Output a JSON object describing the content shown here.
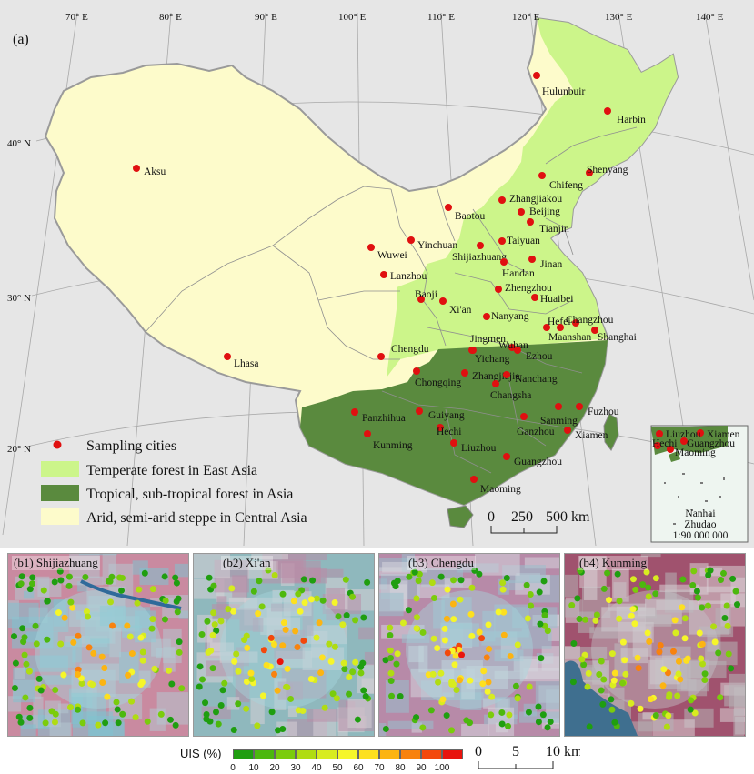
{
  "panel_a_label": "(a)",
  "longitude_labels": [
    "70° E",
    "80° E",
    "90° E",
    "100° E",
    "110° E",
    "120° E",
    "130° E",
    "140° E"
  ],
  "latitude_labels": [
    "40° N",
    "30° N",
    "20° N"
  ],
  "cities": [
    "Hulunbuir",
    "Harbin",
    "Aksu",
    "Shenyang",
    "Chifeng",
    "Zhangjiakou",
    "Baotou",
    "Beijing",
    "Tianjin",
    "Yinchuan",
    "Wuwei",
    "Shijiazhuang",
    "Taiyuan",
    "Handan",
    "Jinan",
    "Lanzhou",
    "Baoji",
    "Xi'an",
    "Zhengzhou",
    "Huaibei",
    "Nanyang",
    "Hefei",
    "Changzhou",
    "Maanshan",
    "Shanghai",
    "Jingmen",
    "Wuhan",
    "Ezhou",
    "Yichang",
    "Chengdu",
    "Lhasa",
    "Chongqing",
    "Zhangjiajie",
    "Nanchang",
    "Changsha",
    "Fuzhou",
    "Panzhihua",
    "Guiyang",
    "Hechi",
    "Sanming",
    "Ganzhou",
    "Xiamen",
    "Kunming",
    "Liuzhou",
    "Guangzhou",
    "Maoming"
  ],
  "legend": {
    "sampling": "Sampling cities",
    "temperate": "Temperate forest in East Asia",
    "tropical": "Tropical, sub-tropical forest in Asia",
    "arid": "Arid, semi-arid steppe in Central Asia"
  },
  "colors": {
    "temperate": "#ccf58a",
    "tropical": "#5a8a3e",
    "arid": "#fdfbcb",
    "sampling": "#e01010"
  },
  "scale_a": {
    "ticks": [
      "0",
      "250",
      "500 km"
    ]
  },
  "inset": {
    "cities": [
      "Liuzhou",
      "Xiamen",
      "Hechi",
      "Guangzhou",
      "Maoming"
    ],
    "title1": "Nanhai",
    "title2": "Zhudao",
    "scale": "1:90 000 000"
  },
  "sub_panels": [
    "(b1) Shijiazhuang",
    "(b2) Xi'an",
    "(b3) Chengdu",
    "(b4) Kunming"
  ],
  "uis_legend": {
    "label": "UIS (%)",
    "ticks": [
      "0",
      "10",
      "20",
      "30",
      "40",
      "50",
      "60",
      "70",
      "80",
      "90",
      "100"
    ],
    "colors": [
      "#1f9e10",
      "#4cb80e",
      "#7bcc0c",
      "#b0dc12",
      "#d8ec20",
      "#f6f62a",
      "#fde020",
      "#fcb412",
      "#f8820e",
      "#f3480c",
      "#e8140e"
    ]
  },
  "scale_b": {
    "ticks": [
      "0",
      "5",
      "10 km"
    ]
  }
}
